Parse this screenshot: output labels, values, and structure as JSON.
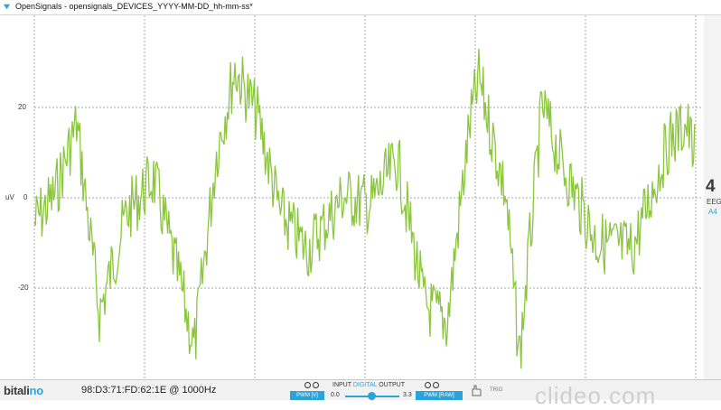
{
  "window": {
    "title": "OpenSignals - opensignals_DEVICES_YYYY-MM-DD_hh-mm-ss*"
  },
  "plot": {
    "y_unit": "uV",
    "y_ticks": [
      "20",
      "0",
      "-20"
    ],
    "line_color": "#8cc63f",
    "grid_color": "#8a8a8a"
  },
  "channel": {
    "number": "4",
    "type": "EEG",
    "port": "A4"
  },
  "footer": {
    "logo_main": "bitali",
    "logo_accent": "no",
    "device": "98:D3:71:FD:62:1E @ 1000Hz",
    "io_input": "INPUT",
    "io_digital": "DIGITAL",
    "io_output": "OUTPUT",
    "pwm_v_label": "PWM [V]",
    "pwm_min": "0.0",
    "pwm_max": "3.3",
    "pwm_raw_label": "PWM [RAW]",
    "trig_label": "TRIG",
    "trig_icon": "hand-icon",
    "watermark": "clideo.com"
  }
}
